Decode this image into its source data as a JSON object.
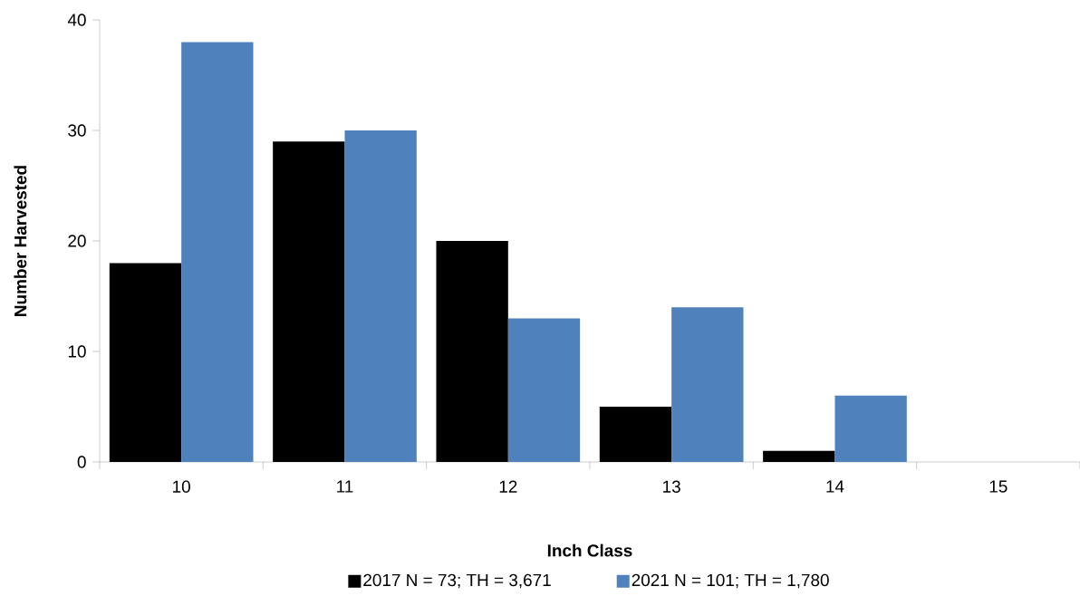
{
  "chart_data": {
    "type": "bar",
    "xlabel": "Inch Class",
    "ylabel": "Number Harvested",
    "categories": [
      "10",
      "11",
      "12",
      "13",
      "14",
      "15"
    ],
    "series": [
      {
        "name": "2017 N = 73; TH = 3,671",
        "color": "#000000",
        "values": [
          18,
          29,
          20,
          5,
          1,
          0
        ]
      },
      {
        "name": "2021 N = 101; TH = 1,780",
        "color": "#4f81bd",
        "values": [
          38,
          30,
          13,
          14,
          6,
          0
        ]
      }
    ],
    "ylim": [
      0,
      40
    ],
    "yticks": [
      0,
      10,
      20,
      30,
      40
    ],
    "legend": "bottom"
  }
}
